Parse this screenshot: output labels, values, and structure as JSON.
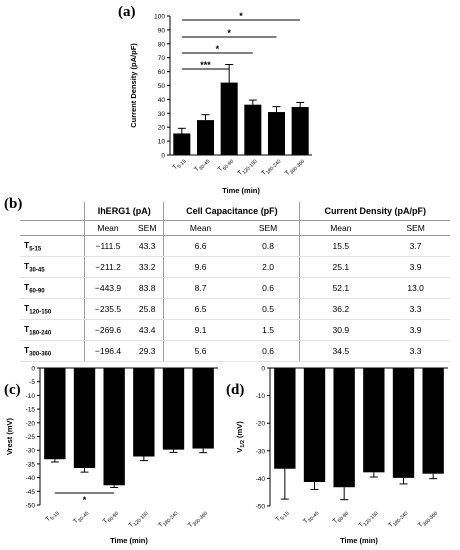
{
  "panels": {
    "a": "(a)",
    "b": "(b)",
    "c": "(c)",
    "d": "(d)"
  },
  "chart_data": [
    {
      "id": "a",
      "type": "bar",
      "categories": [
        {
          "base": "T",
          "sub": "5-15"
        },
        {
          "base": "T",
          "sub": "30-45"
        },
        {
          "base": "T",
          "sub": "60-90"
        },
        {
          "base": "T",
          "sub": "120-150"
        },
        {
          "base": "T",
          "sub": "180-240"
        },
        {
          "base": "T",
          "sub": "300-360"
        }
      ],
      "values": [
        15.5,
        25.1,
        52.1,
        36.2,
        30.9,
        34.5
      ],
      "errors": [
        3.7,
        3.9,
        13.0,
        3.3,
        3.9,
        3.3
      ],
      "xlabel": "Time (min)",
      "ylabel": "Current Density (pA/pF)",
      "ylim": [
        0,
        100
      ],
      "yticks": [
        0,
        10,
        20,
        30,
        40,
        50,
        60,
        70,
        80,
        90,
        100
      ],
      "significance": [
        {
          "from": 0,
          "to": 5,
          "label": "*"
        },
        {
          "from": 0,
          "to": 4,
          "label": "*"
        },
        {
          "from": 0,
          "to": 3,
          "label": "*"
        },
        {
          "from": 0,
          "to": 2,
          "label": "***"
        }
      ]
    },
    {
      "id": "c",
      "type": "bar",
      "categories": [
        {
          "base": "T",
          "sub": "5-15"
        },
        {
          "base": "T",
          "sub": "30-45"
        },
        {
          "base": "T",
          "sub": "60-90"
        },
        {
          "base": "T",
          "sub": "120-150"
        },
        {
          "base": "T",
          "sub": "180-240"
        },
        {
          "base": "T",
          "sub": "300-360"
        }
      ],
      "values": [
        -33.3,
        -36.5,
        -42.8,
        -32.3,
        -29.8,
        -29.4
      ],
      "errors": [
        1.0,
        1.5,
        0.8,
        1.5,
        1.0,
        1.5
      ],
      "xlabel": "Time (min)",
      "ylabel": "Vrest (mV)",
      "ylim": [
        -50,
        0
      ],
      "yticks": [
        0,
        -5,
        -10,
        -15,
        -20,
        -25,
        -30,
        -35,
        -40,
        -45,
        -50
      ],
      "significance": [
        {
          "from": 0,
          "to": 2,
          "label": "*"
        }
      ]
    },
    {
      "id": "d",
      "type": "bar",
      "categories": [
        {
          "base": "T",
          "sub": "5-15"
        },
        {
          "base": "T",
          "sub": "30-45"
        },
        {
          "base": "T",
          "sub": "60-90"
        },
        {
          "base": "T",
          "sub": "120-150"
        },
        {
          "base": "T",
          "sub": "180-240"
        },
        {
          "base": "T",
          "sub": "300-360"
        }
      ],
      "values": [
        -36.5,
        -41.3,
        -43.2,
        -37.8,
        -39.8,
        -38.3
      ],
      "errors": [
        11.0,
        2.7,
        4.5,
        1.7,
        2.2,
        1.8
      ],
      "xlabel": "Time (min)",
      "ylabel": "V1/2 (mV)",
      "ylabel_base": "V",
      "ylabel_sub": "1/2",
      "ylabel_unit": " (mV)",
      "ylim": [
        -50,
        0
      ],
      "yticks": [
        0,
        -10,
        -20,
        -30,
        -40,
        -50
      ],
      "significance": []
    }
  ],
  "table": {
    "groups": [
      "IhERG1 (pA)",
      "Cell Capacitance (pF)",
      "Current Density (pA/pF)"
    ],
    "subheaders": [
      "Mean",
      "SEM",
      "Mean",
      "SEM",
      "Mean",
      "SEM"
    ],
    "rows": [
      {
        "base": "T",
        "sub": "5-15",
        "cells": [
          "−111.5",
          "43.3",
          "6.6",
          "0.8",
          "15.5",
          "3.7"
        ]
      },
      {
        "base": "T",
        "sub": "30-45",
        "cells": [
          "−211.2",
          "33.2",
          "9.6",
          "2.0",
          "25.1",
          "3.9"
        ]
      },
      {
        "base": "T",
        "sub": "60-90",
        "cells": [
          "−443.9",
          "83.8",
          "8.7",
          "0.6",
          "52.1",
          "13.0"
        ]
      },
      {
        "base": "T",
        "sub": "120-150",
        "cells": [
          "−235.5",
          "25.8",
          "6.5",
          "0.5",
          "36.2",
          "3.3"
        ]
      },
      {
        "base": "T",
        "sub": "180-240",
        "cells": [
          "−269.6",
          "43.4",
          "9.1",
          "1.5",
          "30.9",
          "3.9"
        ]
      },
      {
        "base": "T",
        "sub": "300-360",
        "cells": [
          "−196.4",
          "29.3",
          "5.6",
          "0.6",
          "34.5",
          "3.3"
        ]
      }
    ]
  }
}
